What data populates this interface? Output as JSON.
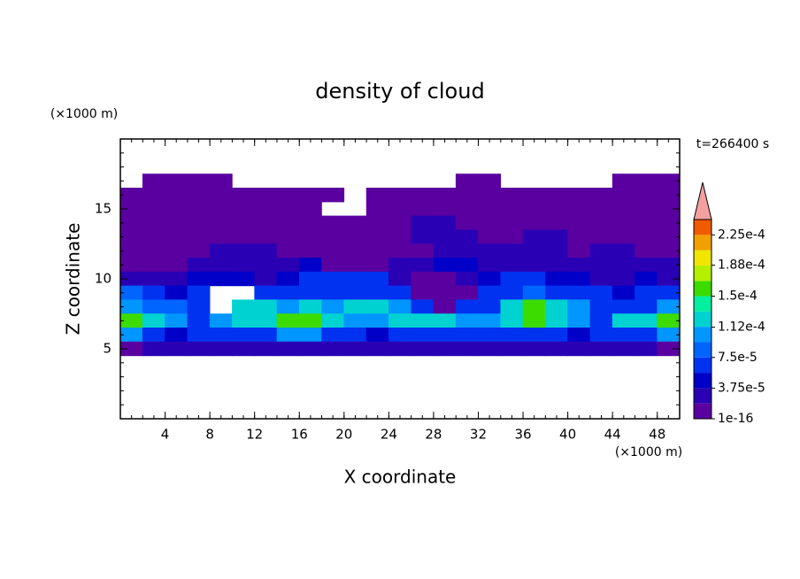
{
  "chart_data": {
    "type": "contour",
    "title": "density of cloud",
    "x_label": "X coordinate",
    "y_label": "Z coordinate",
    "x_unit": "(×1000 m)",
    "y_unit": "(×1000 m)",
    "time_label": "t=266400 s",
    "xlim": [
      0,
      50
    ],
    "ylim": [
      0,
      20
    ],
    "xticks": [
      4,
      8,
      12,
      16,
      20,
      24,
      28,
      32,
      36,
      40,
      44,
      48
    ],
    "yticks": [
      5,
      10,
      15
    ],
    "x": [
      1,
      3,
      5,
      7,
      9,
      11,
      13,
      15,
      17,
      19,
      21,
      23,
      25,
      27,
      29,
      31,
      33,
      35,
      37,
      39,
      41,
      43,
      45,
      47,
      49
    ],
    "y": [
      17,
      16,
      15,
      14,
      13,
      12,
      11,
      10,
      9,
      8,
      7,
      6,
      5
    ],
    "z": [
      [
        null,
        1e-06,
        1e-06,
        1e-06,
        1e-06,
        null,
        null,
        null,
        null,
        null,
        null,
        null,
        null,
        null,
        null,
        1e-06,
        1e-06,
        null,
        null,
        null,
        null,
        null,
        1e-06,
        1e-06,
        1e-06
      ],
      [
        1e-06,
        1e-06,
        1e-06,
        1e-06,
        1e-06,
        1e-06,
        1e-06,
        1e-06,
        1e-06,
        1e-06,
        null,
        1e-06,
        1e-06,
        1e-06,
        1e-06,
        1e-06,
        1e-06,
        1e-06,
        1e-06,
        1e-06,
        1e-06,
        1e-06,
        1e-06,
        1e-06,
        1e-06
      ],
      [
        1e-06,
        1e-06,
        1e-06,
        1e-06,
        1e-06,
        1e-06,
        1e-06,
        1e-06,
        1e-06,
        null,
        null,
        1e-06,
        1e-06,
        1e-06,
        1e-06,
        1e-06,
        1e-06,
        1e-06,
        1e-06,
        1e-06,
        1e-06,
        1e-06,
        1e-06,
        1e-06,
        1e-06
      ],
      [
        1e-06,
        1e-06,
        1e-06,
        1e-06,
        1e-06,
        1e-06,
        1e-06,
        1e-06,
        1e-06,
        1e-06,
        1e-06,
        1e-06,
        1e-06,
        2e-05,
        2e-05,
        1e-06,
        1e-06,
        1e-06,
        1e-06,
        1e-06,
        1e-06,
        1e-06,
        1e-06,
        1e-06,
        1e-06
      ],
      [
        1e-06,
        1e-06,
        1e-06,
        1e-06,
        1e-06,
        1e-06,
        1e-06,
        1e-06,
        1e-06,
        1e-06,
        1e-06,
        1e-06,
        1e-06,
        2e-05,
        2e-05,
        2e-05,
        1e-06,
        1e-06,
        2e-05,
        2e-05,
        1e-06,
        1e-06,
        1e-06,
        1e-06,
        1e-06
      ],
      [
        1e-06,
        1e-06,
        1e-06,
        1e-06,
        2e-05,
        2e-05,
        2e-05,
        1e-06,
        1e-06,
        1e-06,
        1e-06,
        1e-06,
        1e-06,
        1e-06,
        2e-05,
        2e-05,
        2e-05,
        2e-05,
        2e-05,
        2e-05,
        1e-06,
        2e-05,
        2e-05,
        1e-06,
        1e-06
      ],
      [
        1e-06,
        1e-06,
        1e-06,
        2e-05,
        2e-05,
        2e-05,
        2e-05,
        2e-05,
        4e-05,
        1e-06,
        1e-06,
        1e-06,
        2e-05,
        2e-05,
        4e-05,
        4e-05,
        2e-05,
        2e-05,
        2e-05,
        2e-05,
        2e-05,
        2e-05,
        2e-05,
        2e-05,
        2e-05
      ],
      [
        2e-05,
        2e-05,
        2e-05,
        4e-05,
        4e-05,
        4e-05,
        2e-05,
        4e-05,
        6e-05,
        6e-05,
        6e-05,
        6e-05,
        2e-05,
        1e-06,
        1e-06,
        2e-05,
        4e-05,
        6e-05,
        6e-05,
        4e-05,
        4e-05,
        2e-05,
        2e-05,
        4e-05,
        2e-05
      ],
      [
        8e-05,
        6e-05,
        4e-05,
        6e-05,
        null,
        null,
        6e-05,
        6e-05,
        6e-05,
        6e-05,
        6e-05,
        6e-05,
        6e-05,
        1e-06,
        1e-06,
        1e-06,
        6e-05,
        6e-05,
        8e-05,
        6e-05,
        6e-05,
        6e-05,
        4e-05,
        6e-05,
        6e-05
      ],
      [
        0.0001,
        8e-05,
        8e-05,
        6e-05,
        null,
        0.00012,
        0.00012,
        0.0001,
        0.00012,
        0.0001,
        0.00012,
        0.00012,
        0.0001,
        6e-05,
        1e-06,
        6e-05,
        6e-05,
        0.00012,
        0.00016,
        0.00012,
        0.0001,
        6e-05,
        6e-05,
        6e-05,
        0.0001
      ],
      [
        0.00016,
        0.00012,
        0.0001,
        6e-05,
        0.0001,
        0.00012,
        0.00012,
        0.00016,
        0.00016,
        0.00012,
        0.0001,
        0.0001,
        0.00012,
        0.00012,
        0.00012,
        0.0001,
        0.0001,
        0.00012,
        0.00016,
        0.00012,
        0.0001,
        6e-05,
        0.00012,
        0.00012,
        0.00016
      ],
      [
        0.0001,
        6e-05,
        4e-05,
        6e-05,
        6e-05,
        6e-05,
        6e-05,
        0.0001,
        0.0001,
        6e-05,
        6e-05,
        4e-05,
        6e-05,
        6e-05,
        6e-05,
        6e-05,
        6e-05,
        6e-05,
        6e-05,
        6e-05,
        4e-05,
        6e-05,
        6e-05,
        6e-05,
        0.0001
      ],
      [
        1e-06,
        2e-05,
        2e-05,
        2e-05,
        2e-05,
        2e-05,
        2e-05,
        2e-05,
        2e-05,
        2e-05,
        2e-05,
        2e-05,
        2e-05,
        2e-05,
        2e-05,
        2e-05,
        2e-05,
        2e-05,
        2e-05,
        2e-05,
        2e-05,
        2e-05,
        2e-05,
        2e-05,
        1e-06
      ]
    ],
    "levels": [
      1e-16,
      1.875e-05,
      3.75e-05,
      5.625e-05,
      7.5e-05,
      9.375e-05,
      0.0001125,
      0.00013125,
      0.00015,
      0.00016875,
      0.0001875,
      0.00020625,
      0.000225,
      0.00024375
    ],
    "colors": [
      "#5a00a0",
      "#2a00b4",
      "#0000c8",
      "#0032f0",
      "#0064ff",
      "#0096ff",
      "#00d2d2",
      "#00f0a0",
      "#3cdc00",
      "#b4f000",
      "#f0e600",
      "#f0a000",
      "#f05a00"
    ],
    "overflow_color": "#f4a0a0",
    "colorbar_ticks": [
      {
        "value": 1e-16,
        "label": "1e-16"
      },
      {
        "value": 3.75e-05,
        "label": "3.75e-5"
      },
      {
        "value": 7.5e-05,
        "label": "7.5e-5"
      },
      {
        "value": 0.000112,
        "label": "1.12e-4"
      },
      {
        "value": 0.00015,
        "label": "1.5e-4"
      },
      {
        "value": 0.000188,
        "label": "1.88e-4"
      },
      {
        "value": 0.000225,
        "label": "2.25e-4"
      }
    ]
  }
}
